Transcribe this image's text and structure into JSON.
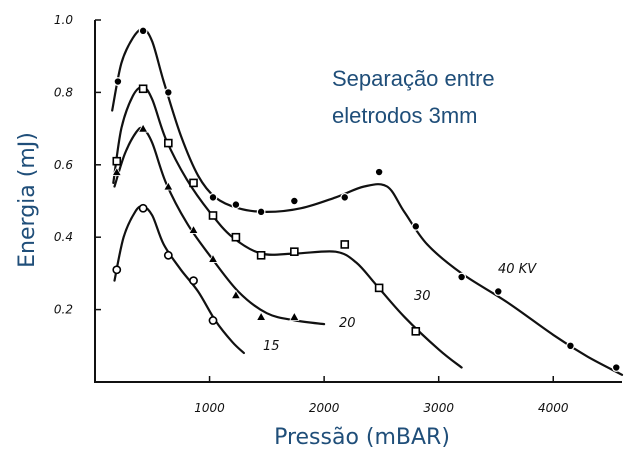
{
  "chart_data": {
    "type": "line",
    "title": "",
    "annotation_lines": [
      "Separação entre",
      "eletrodos 3mm"
    ],
    "xlabel": "Pressão (mBAR)",
    "ylabel": "Energia (mJ)",
    "xlim": [
      0,
      4600
    ],
    "ylim": [
      0.0,
      1.0
    ],
    "xticks": [
      1000,
      2000,
      3000,
      4000
    ],
    "yticks": [
      0.2,
      0.4,
      0.6,
      0.8,
      1.0
    ],
    "xtick_labels": [
      "1000",
      "2000",
      "3000",
      "4000"
    ],
    "ytick_labels": [
      "0.2",
      "0.4",
      "0.6",
      "0.8",
      "1.0"
    ],
    "grid": false,
    "series": [
      {
        "name": "40 KV",
        "marker": "filled-circle",
        "markers": [
          [
            200,
            0.83
          ],
          [
            420,
            0.97
          ],
          [
            640,
            0.8
          ],
          [
            1030,
            0.51
          ],
          [
            1230,
            0.49
          ],
          [
            1450,
            0.47
          ],
          [
            1740,
            0.5
          ],
          [
            2180,
            0.51
          ],
          [
            2480,
            0.58
          ],
          [
            2800,
            0.43
          ],
          [
            3200,
            0.29
          ],
          [
            3520,
            0.25
          ],
          [
            4150,
            0.1
          ],
          [
            4550,
            0.04
          ]
        ],
        "curve": [
          [
            150,
            0.75
          ],
          [
            230,
            0.88
          ],
          [
            330,
            0.95
          ],
          [
            420,
            0.975
          ],
          [
            500,
            0.94
          ],
          [
            600,
            0.83
          ],
          [
            750,
            0.68
          ],
          [
            900,
            0.57
          ],
          [
            1050,
            0.51
          ],
          [
            1250,
            0.48
          ],
          [
            1500,
            0.47
          ],
          [
            1800,
            0.48
          ],
          [
            2100,
            0.51
          ],
          [
            2350,
            0.54
          ],
          [
            2550,
            0.54
          ],
          [
            2700,
            0.47
          ],
          [
            2900,
            0.38
          ],
          [
            3200,
            0.3
          ],
          [
            3600,
            0.22
          ],
          [
            4000,
            0.13
          ],
          [
            4300,
            0.07
          ],
          [
            4600,
            0.02
          ]
        ]
      },
      {
        "name": "30",
        "marker": "square",
        "markers": [
          [
            190,
            0.61
          ],
          [
            420,
            0.81
          ],
          [
            640,
            0.66
          ],
          [
            860,
            0.55
          ],
          [
            1030,
            0.46
          ],
          [
            1230,
            0.4
          ],
          [
            1450,
            0.35
          ],
          [
            1740,
            0.36
          ],
          [
            2180,
            0.38
          ],
          [
            2480,
            0.26
          ],
          [
            2800,
            0.14
          ]
        ],
        "curve": [
          [
            160,
            0.55
          ],
          [
            230,
            0.7
          ],
          [
            330,
            0.79
          ],
          [
            420,
            0.815
          ],
          [
            500,
            0.78
          ],
          [
            620,
            0.67
          ],
          [
            800,
            0.56
          ],
          [
            1000,
            0.47
          ],
          [
            1200,
            0.4
          ],
          [
            1450,
            0.355
          ],
          [
            1750,
            0.355
          ],
          [
            2100,
            0.36
          ],
          [
            2280,
            0.33
          ],
          [
            2450,
            0.27
          ],
          [
            2700,
            0.18
          ],
          [
            3000,
            0.09
          ],
          [
            3200,
            0.04
          ]
        ]
      },
      {
        "name": "20",
        "marker": "triangle",
        "markers": [
          [
            190,
            0.58
          ],
          [
            420,
            0.7
          ],
          [
            640,
            0.54
          ],
          [
            860,
            0.42
          ],
          [
            1030,
            0.34
          ],
          [
            1230,
            0.24
          ],
          [
            1450,
            0.18
          ],
          [
            1740,
            0.18
          ]
        ],
        "curve": [
          [
            170,
            0.54
          ],
          [
            260,
            0.63
          ],
          [
            360,
            0.69
          ],
          [
            420,
            0.7
          ],
          [
            500,
            0.66
          ],
          [
            620,
            0.55
          ],
          [
            800,
            0.44
          ],
          [
            1000,
            0.35
          ],
          [
            1250,
            0.25
          ],
          [
            1500,
            0.19
          ],
          [
            1750,
            0.17
          ],
          [
            2000,
            0.16
          ]
        ]
      },
      {
        "name": "15",
        "marker": "open-circle",
        "markers": [
          [
            190,
            0.31
          ],
          [
            420,
            0.48
          ],
          [
            640,
            0.35
          ],
          [
            860,
            0.28
          ],
          [
            1030,
            0.17
          ]
        ],
        "curve": [
          [
            170,
            0.28
          ],
          [
            250,
            0.4
          ],
          [
            350,
            0.47
          ],
          [
            420,
            0.485
          ],
          [
            500,
            0.46
          ],
          [
            600,
            0.38
          ],
          [
            750,
            0.31
          ],
          [
            900,
            0.25
          ],
          [
            1050,
            0.17
          ],
          [
            1200,
            0.11
          ],
          [
            1300,
            0.08
          ]
        ]
      }
    ]
  }
}
